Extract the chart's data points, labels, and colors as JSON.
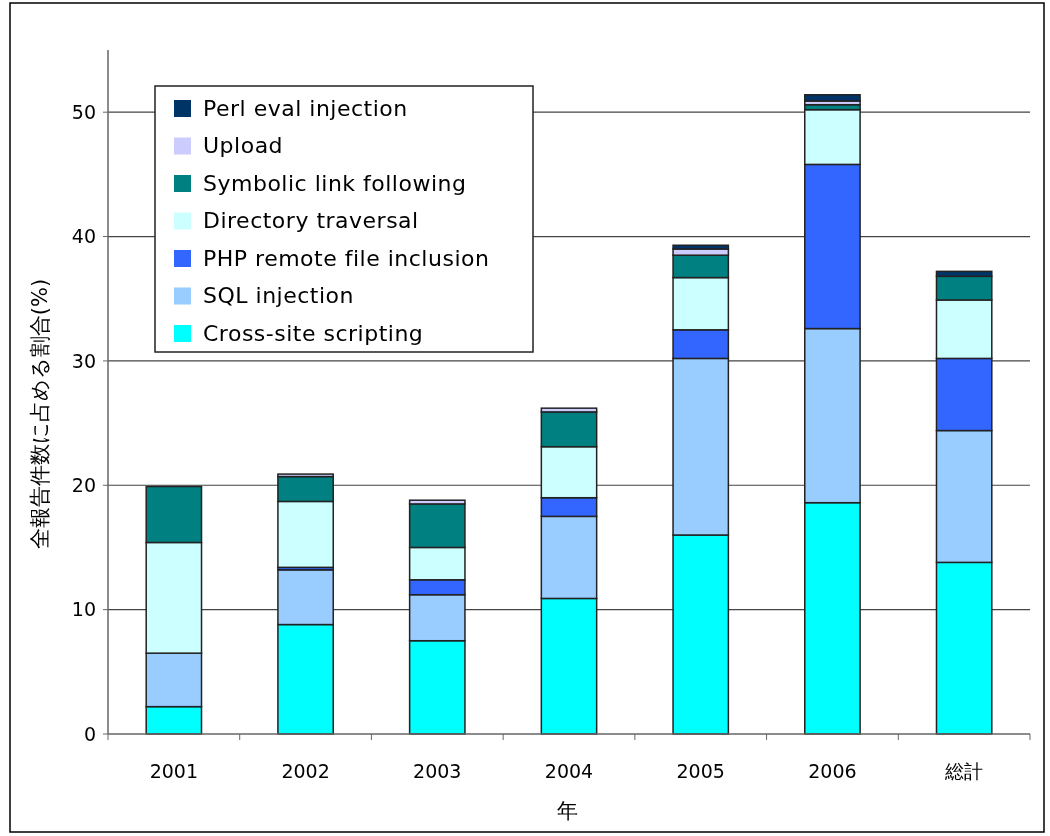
{
  "chart_data": {
    "type": "bar",
    "stacked": true,
    "xlabel": "年",
    "ylabel": "全報告件数に占める割合(%)",
    "categories": [
      "2001",
      "2002",
      "2003",
      "2004",
      "2005",
      "2006",
      "総計"
    ],
    "series": [
      {
        "name": "Cross-site scripting",
        "color": "#00ffff",
        "values": [
          2.2,
          8.8,
          7.5,
          10.9,
          16.0,
          18.6,
          13.8
        ]
      },
      {
        "name": "SQL injection",
        "color": "#99ccff",
        "values": [
          4.3,
          4.4,
          3.7,
          6.6,
          14.2,
          14.0,
          10.6
        ]
      },
      {
        "name": "PHP remote file inclusion",
        "color": "#3366ff",
        "values": [
          0,
          0.2,
          1.2,
          1.5,
          2.3,
          13.2,
          5.8
        ]
      },
      {
        "name": "Directory traversal",
        "color": "#ccffff",
        "values": [
          8.9,
          5.3,
          2.6,
          4.1,
          4.2,
          4.4,
          4.7
        ]
      },
      {
        "name": "Symbolic link following",
        "color": "#008080",
        "values": [
          4.5,
          2.0,
          3.5,
          2.8,
          1.8,
          0.4,
          1.9
        ]
      },
      {
        "name": "Upload",
        "color": "#ccccff",
        "values": [
          0,
          0.2,
          0.3,
          0.3,
          0.5,
          0.3,
          null
        ]
      },
      {
        "name": "Perl eval injection",
        "color": "#003366",
        "values": [
          0,
          0,
          0,
          0,
          0.3,
          0.5,
          0.4
        ]
      }
    ],
    "ylim": [
      0,
      55
    ],
    "yticks": [
      0,
      10,
      20,
      30,
      40,
      50
    ],
    "grid": "y",
    "legend": "top left"
  }
}
